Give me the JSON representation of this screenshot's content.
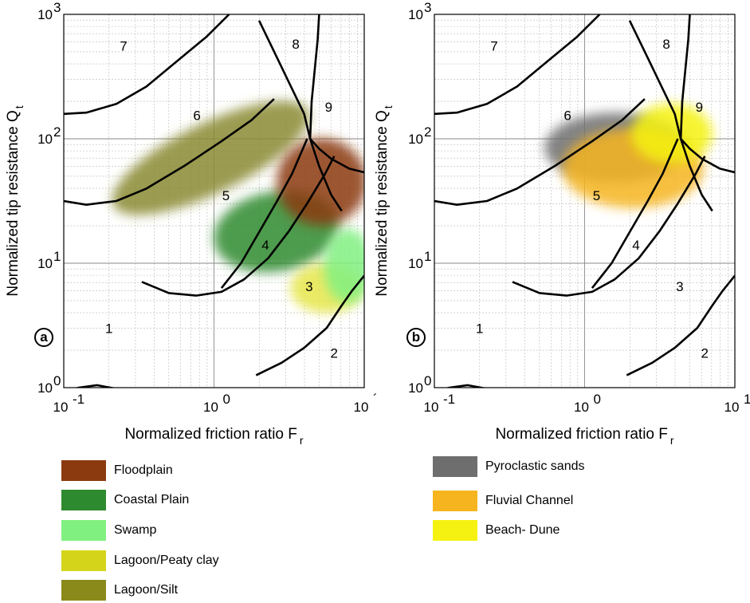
{
  "chart_data": [
    {
      "type": "scatter",
      "panel": "a",
      "title": "",
      "xlabel_main": "Normalized friction ratio F",
      "xlabel_sub": "r",
      "ylabel_main": "Normalized tip resistance Q",
      "ylabel_sub": "t",
      "xscale": "log",
      "yscale": "log",
      "xlim": [
        0.1,
        10
      ],
      "ylim": [
        1,
        1000
      ],
      "x_ticks": [
        {
          "base": "10",
          "exp": "-1"
        },
        {
          "base": "10",
          "exp": "0"
        },
        {
          "base": "10",
          "exp": "´"
        }
      ],
      "y_ticks": [
        {
          "base": "10",
          "exp": "0"
        },
        {
          "base": "10",
          "exp": "1"
        },
        {
          "base": "10",
          "exp": "2"
        },
        {
          "base": "10",
          "exp": "3"
        }
      ],
      "zones": [
        {
          "label": "1",
          "x": 0.2,
          "y": 3
        },
        {
          "label": "2",
          "x": 6.3,
          "y": 1.9
        },
        {
          "label": "3",
          "x": 4.3,
          "y": 6.5
        },
        {
          "label": "4",
          "x": 2.2,
          "y": 14
        },
        {
          "label": "5",
          "x": 1.2,
          "y": 35
        },
        {
          "label": "6",
          "x": 0.77,
          "y": 155
        },
        {
          "label": "7",
          "x": 0.25,
          "y": 560
        },
        {
          "label": "8",
          "x": 3.5,
          "y": 580
        },
        {
          "label": "9",
          "x": 5.8,
          "y": 180
        }
      ],
      "series": [
        {
          "name": "Lagoon/Silt",
          "color": "#8a8a32",
          "cx": 0.95,
          "cy": 70,
          "rx": 0.72,
          "ry": 0.28,
          "rot": 26
        },
        {
          "name": "Coastal Plain",
          "color": "#2e8a2e",
          "cx": 2.6,
          "cy": 18,
          "rx": 0.42,
          "ry": 0.32,
          "rot": 10
        },
        {
          "name": "Lagoon/Peaty clay",
          "color": "#e6e64a",
          "cx": 5.6,
          "cy": 6.3,
          "rx": 0.24,
          "ry": 0.2,
          "rot": 0
        },
        {
          "name": "Swamp",
          "color": "#80f080",
          "cx": 7.8,
          "cy": 9.5,
          "rx": 0.16,
          "ry": 0.3,
          "rot": 0
        },
        {
          "name": "Floodplain",
          "color": "#8b3a10",
          "cx": 5.2,
          "cy": 45,
          "rx": 0.3,
          "ry": 0.35,
          "rot": 0
        }
      ]
    },
    {
      "type": "scatter",
      "panel": "b",
      "title": "",
      "xlabel_main": "Normalized friction ratio F",
      "xlabel_sub": "r",
      "ylabel_main": "Normalized tip resistance Q",
      "ylabel_sub": "t",
      "xscale": "log",
      "yscale": "log",
      "xlim": [
        0.1,
        10
      ],
      "ylim": [
        1,
        1000
      ],
      "x_ticks": [
        {
          "base": "10",
          "exp": "-1"
        },
        {
          "base": "10",
          "exp": "0"
        },
        {
          "base": "10",
          "exp": "1"
        }
      ],
      "y_ticks": [
        {
          "base": "10",
          "exp": "0"
        },
        {
          "base": "10",
          "exp": "1"
        },
        {
          "base": "10",
          "exp": "2"
        },
        {
          "base": "10",
          "exp": "3"
        }
      ],
      "zones": [
        {
          "label": "1",
          "x": 0.2,
          "y": 3
        },
        {
          "label": "2",
          "x": 6.3,
          "y": 1.9
        },
        {
          "label": "3",
          "x": 4.3,
          "y": 6.5
        },
        {
          "label": "4",
          "x": 2.2,
          "y": 14
        },
        {
          "label": "5",
          "x": 1.2,
          "y": 35
        },
        {
          "label": "6",
          "x": 0.77,
          "y": 155
        },
        {
          "label": "7",
          "x": 0.25,
          "y": 560
        },
        {
          "label": "8",
          "x": 3.5,
          "y": 580
        },
        {
          "label": "9",
          "x": 5.8,
          "y": 180
        }
      ],
      "series": [
        {
          "name": "Pyroclastic sands",
          "color": "#6e6e6e",
          "cx": 1.6,
          "cy": 85,
          "rx": 0.47,
          "ry": 0.28,
          "rot": 0
        },
        {
          "name": "Fluvial Channel",
          "color": "#f6b51e",
          "cx": 2.1,
          "cy": 58,
          "rx": 0.47,
          "ry": 0.32,
          "rot": 0
        },
        {
          "name": "Beach- Dune",
          "color": "#f5f212",
          "cx": 3.8,
          "cy": 110,
          "rx": 0.27,
          "ry": 0.24,
          "rot": 0
        }
      ]
    }
  ],
  "legend": {
    "left": [
      {
        "label": "Floodplain",
        "color": "#8b3a10"
      },
      {
        "label": "Coastal Plain",
        "color": "#2e8a2e"
      },
      {
        "label": "Swamp",
        "color": "#80f080"
      },
      {
        "label": "Lagoon/Peaty clay",
        "color": "#d4d41a"
      },
      {
        "label": "Lagoon/Silt",
        "color": "#8a8a1a"
      }
    ],
    "right": [
      {
        "label": "Pyroclastic sands",
        "color": "#6e6e6e"
      },
      {
        "label": " Fluvial Channel",
        "color": "#f6b51e"
      },
      {
        "label": "Beach- Dune",
        "color": "#f5f212"
      }
    ]
  }
}
